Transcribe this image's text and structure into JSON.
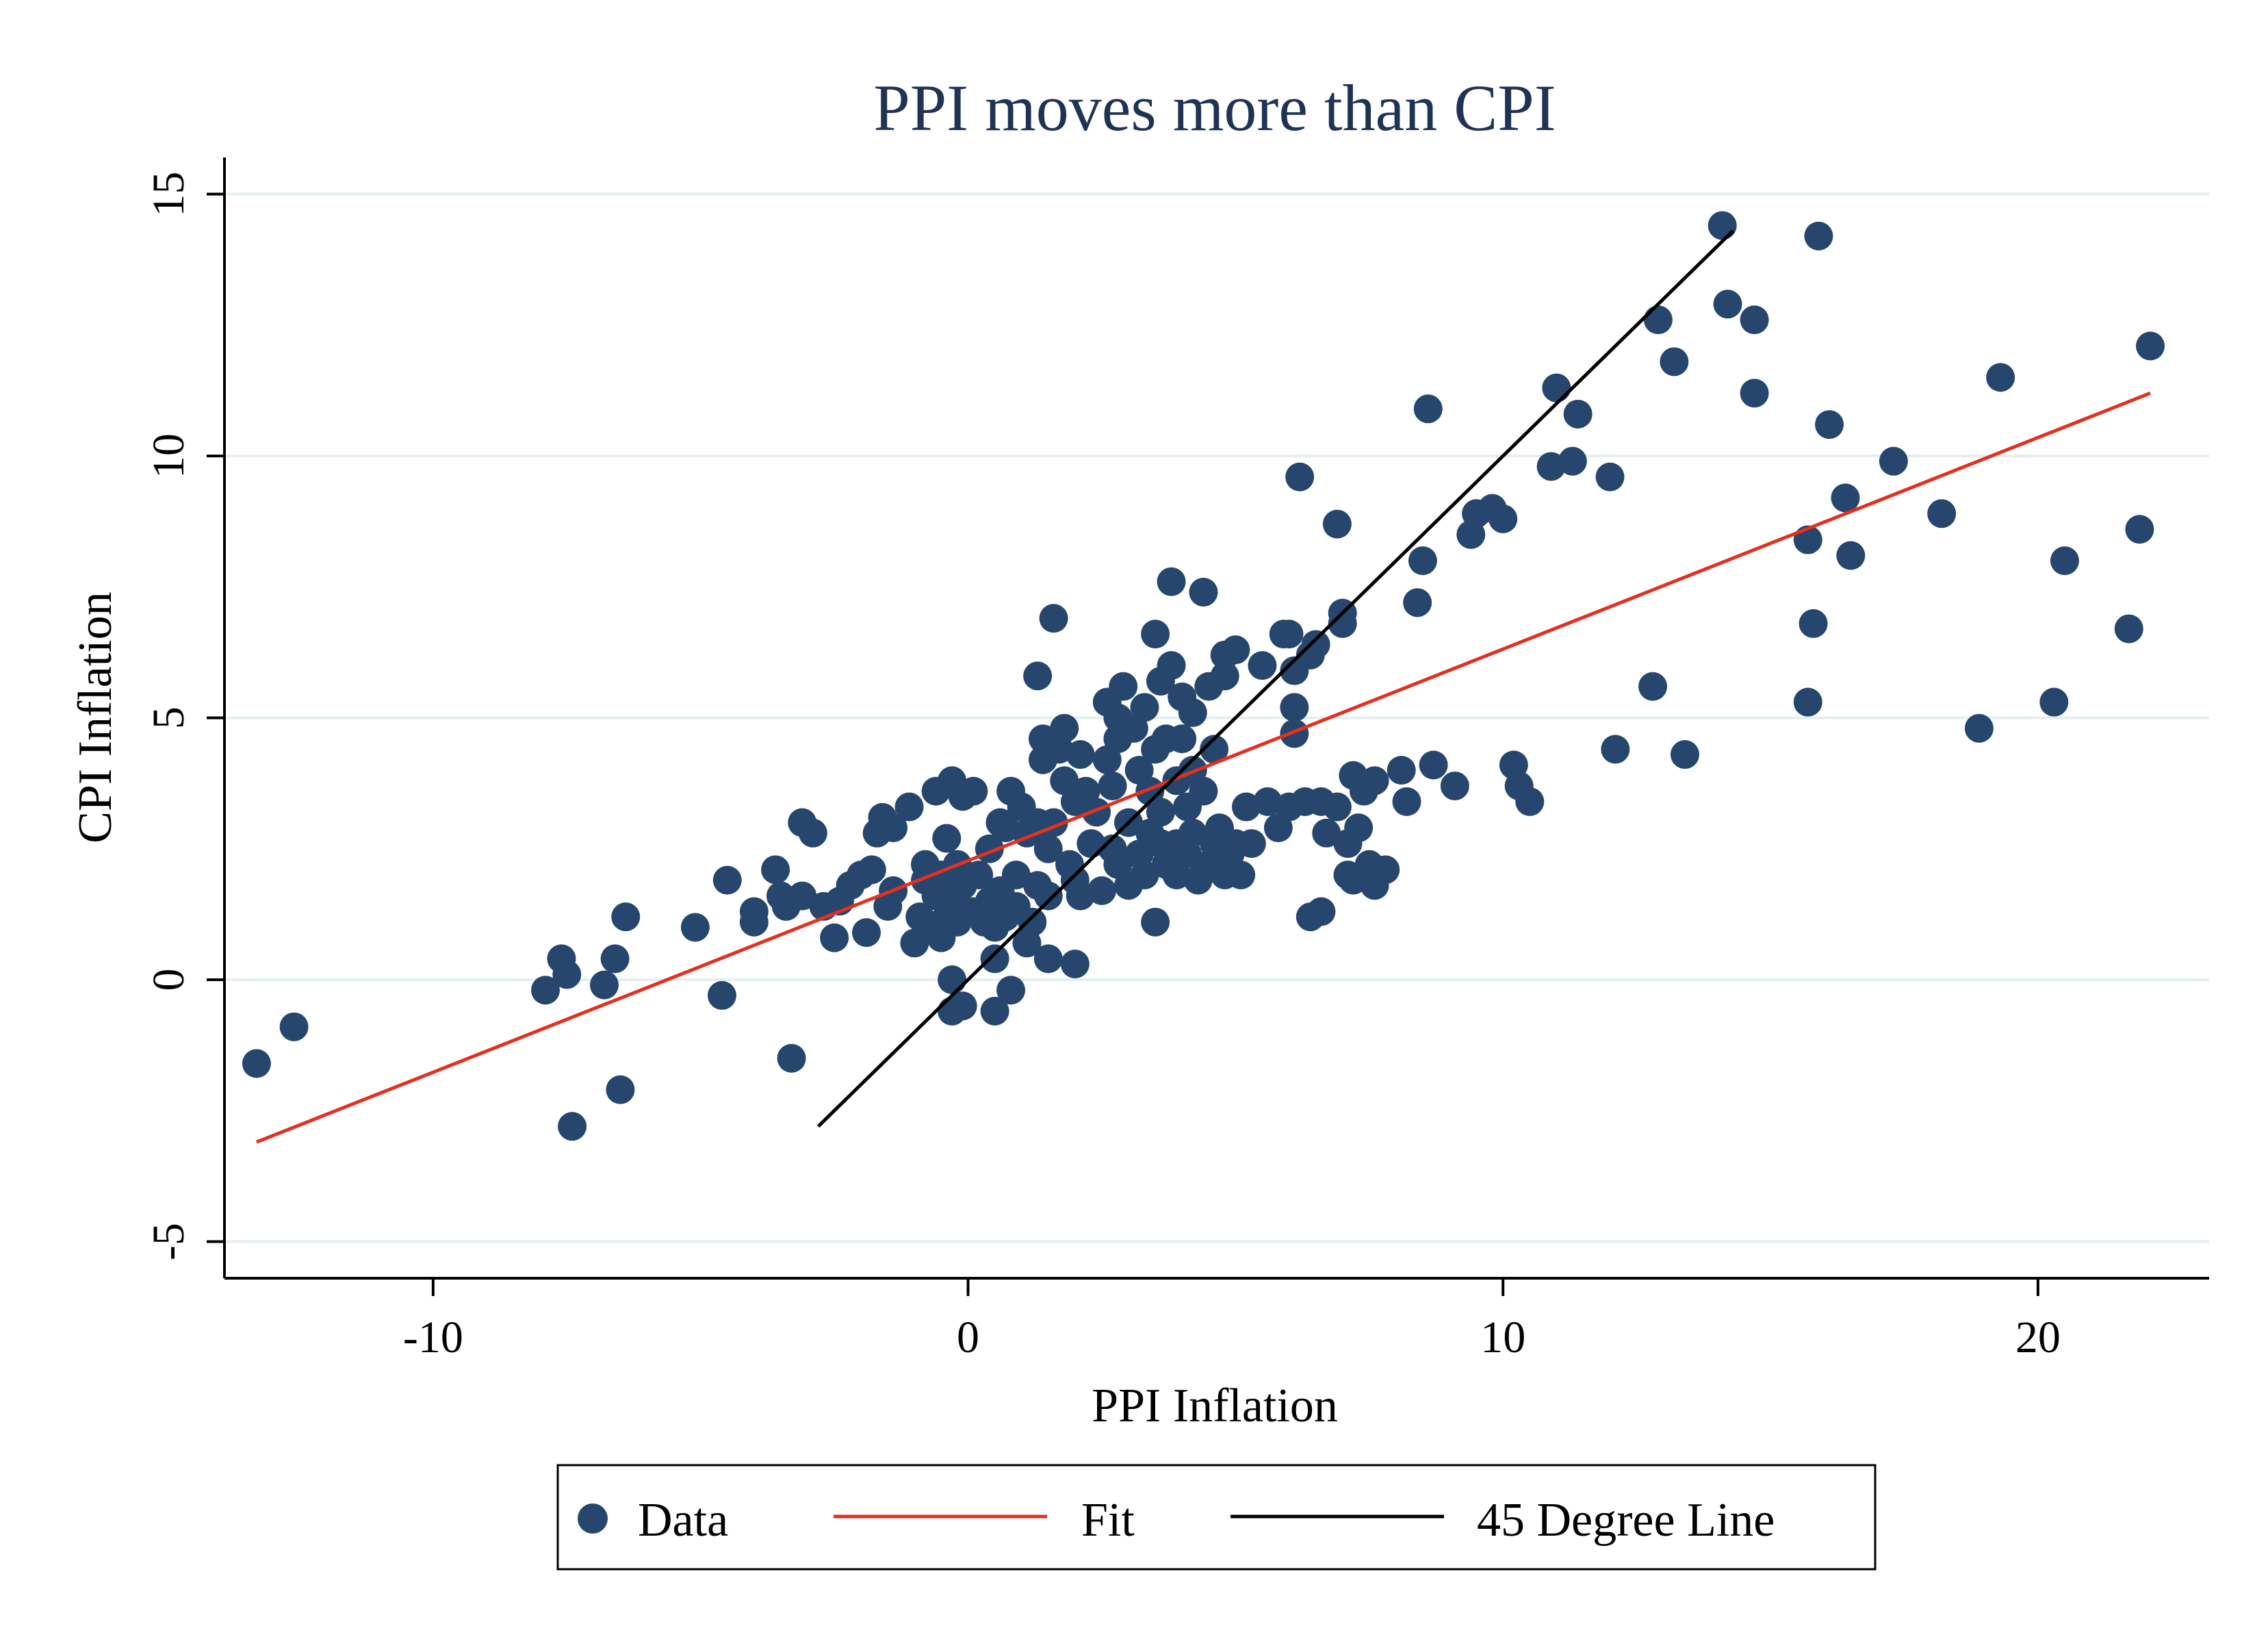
{
  "chart_data": {
    "type": "scatter",
    "title": "PPI moves more than CPI",
    "xlabel": "PPI Inflation",
    "ylabel": "CPI Inflation",
    "xlim": [
      -13.9,
      23.2
    ],
    "ylim": [
      -5.7,
      15.7
    ],
    "xticks": [
      -10,
      0,
      10,
      20
    ],
    "yticks": [
      -5,
      0,
      5,
      10,
      15
    ],
    "grid": "horizontal",
    "legend_position": "bottom",
    "colors": {
      "data": "#26466d",
      "fit": "#e3301f",
      "diag": "#000000",
      "title": "#1f3355",
      "grid": "#e6eeee"
    },
    "series": [
      {
        "name": "Data",
        "kind": "points",
        "points": [
          [
            -13.3,
            -1.6
          ],
          [
            -12.6,
            -0.9
          ],
          [
            -7.9,
            -0.2
          ],
          [
            -7.6,
            0.4
          ],
          [
            -7.5,
            0.1
          ],
          [
            -7.4,
            -2.8
          ],
          [
            -6.8,
            -0.1
          ],
          [
            -6.6,
            0.4
          ],
          [
            -6.5,
            -2.1
          ],
          [
            -6.4,
            1.2
          ],
          [
            -5.1,
            1.0
          ],
          [
            -4.6,
            -0.3
          ],
          [
            -4.5,
            1.9
          ],
          [
            -4.0,
            1.1
          ],
          [
            -4.0,
            1.3
          ],
          [
            -3.6,
            2.1
          ],
          [
            -3.5,
            1.6
          ],
          [
            -3.4,
            1.4
          ],
          [
            -3.3,
            -1.5
          ],
          [
            -3.1,
            1.6
          ],
          [
            -3.1,
            3.0
          ],
          [
            -2.9,
            2.8
          ],
          [
            -2.7,
            1.4
          ],
          [
            -2.5,
            0.8
          ],
          [
            -2.4,
            1.5
          ],
          [
            -2.2,
            1.8
          ],
          [
            -2.0,
            2.0
          ],
          [
            -1.9,
            0.9
          ],
          [
            -1.8,
            2.1
          ],
          [
            -1.7,
            2.8
          ],
          [
            -1.6,
            3.1
          ],
          [
            -1.5,
            1.4
          ],
          [
            -1.4,
            1.7
          ],
          [
            -1.4,
            2.9
          ],
          [
            -1.1,
            3.3
          ],
          [
            -1.0,
            0.7
          ],
          [
            -0.9,
            1.2
          ],
          [
            -0.8,
            1.9
          ],
          [
            -0.8,
            2.2
          ],
          [
            -0.7,
            1.0
          ],
          [
            -0.6,
            3.6
          ],
          [
            -0.6,
            1.6
          ],
          [
            -0.5,
            2.0
          ],
          [
            -0.5,
            0.8
          ],
          [
            -0.4,
            2.7
          ],
          [
            -0.4,
            1.2
          ],
          [
            -0.3,
            3.8
          ],
          [
            -0.3,
            1.5
          ],
          [
            -0.3,
            0.0
          ],
          [
            -0.3,
            -0.6
          ],
          [
            -0.2,
            2.2
          ],
          [
            -0.2,
            1.1
          ],
          [
            -0.1,
            3.5
          ],
          [
            -0.1,
            1.8
          ],
          [
            -0.1,
            -0.5
          ],
          [
            0.1,
            3.6
          ],
          [
            0.1,
            1.3
          ],
          [
            0.2,
            2.0
          ],
          [
            0.3,
            1.1
          ],
          [
            0.4,
            2.5
          ],
          [
            0.4,
            1.5
          ],
          [
            0.5,
            -0.6
          ],
          [
            0.5,
            1.0
          ],
          [
            0.5,
            0.4
          ],
          [
            0.6,
            3.0
          ],
          [
            0.6,
            1.7
          ],
          [
            0.7,
            1.2
          ],
          [
            0.7,
            2.9
          ],
          [
            0.8,
            3.6
          ],
          [
            0.8,
            -0.2
          ],
          [
            0.9,
            2.0
          ],
          [
            0.9,
            1.4
          ],
          [
            1.0,
            3.3
          ],
          [
            1.1,
            2.8
          ],
          [
            1.1,
            0.7
          ],
          [
            1.2,
            1.1
          ],
          [
            1.3,
            3.0
          ],
          [
            1.3,
            1.8
          ],
          [
            1.3,
            5.8
          ],
          [
            1.4,
            4.2
          ],
          [
            1.4,
            4.6
          ],
          [
            1.5,
            2.5
          ],
          [
            1.5,
            1.6
          ],
          [
            1.5,
            0.4
          ],
          [
            1.6,
            6.9
          ],
          [
            1.6,
            3.0
          ],
          [
            1.7,
            4.4
          ],
          [
            1.8,
            4.8
          ],
          [
            1.8,
            3.8
          ],
          [
            1.9,
            2.2
          ],
          [
            2.0,
            3.4
          ],
          [
            2.0,
            1.9
          ],
          [
            2.0,
            0.3
          ],
          [
            2.1,
            4.3
          ],
          [
            2.1,
            1.6
          ],
          [
            2.2,
            3.6
          ],
          [
            2.3,
            2.6
          ],
          [
            2.4,
            3.2
          ],
          [
            2.5,
            1.7
          ],
          [
            2.6,
            4.2
          ],
          [
            2.6,
            5.3
          ],
          [
            2.7,
            3.7
          ],
          [
            2.7,
            2.5
          ],
          [
            2.8,
            5.0
          ],
          [
            2.8,
            4.6
          ],
          [
            2.8,
            2.2
          ],
          [
            2.9,
            5.6
          ],
          [
            3.0,
            3.0
          ],
          [
            3.0,
            1.8
          ],
          [
            3.1,
            4.8
          ],
          [
            3.2,
            2.4
          ],
          [
            3.2,
            4.0
          ],
          [
            3.3,
            5.2
          ],
          [
            3.3,
            2.0
          ],
          [
            3.4,
            3.6
          ],
          [
            3.4,
            2.8
          ],
          [
            3.5,
            4.4
          ],
          [
            3.5,
            6.6
          ],
          [
            3.5,
            1.1
          ],
          [
            3.6,
            5.7
          ],
          [
            3.6,
            3.2
          ],
          [
            3.6,
            2.6
          ],
          [
            3.7,
            4.6
          ],
          [
            3.7,
            2.2
          ],
          [
            3.8,
            7.6
          ],
          [
            3.8,
            6.0
          ],
          [
            3.9,
            3.8
          ],
          [
            3.9,
            2.6
          ],
          [
            3.9,
            2.0
          ],
          [
            4.0,
            5.4
          ],
          [
            4.0,
            4.6
          ],
          [
            4.1,
            3.3
          ],
          [
            4.1,
            2.4
          ],
          [
            4.2,
            5.1
          ],
          [
            4.2,
            4.0
          ],
          [
            4.2,
            2.8
          ],
          [
            4.3,
            1.9
          ],
          [
            4.4,
            7.4
          ],
          [
            4.4,
            3.6
          ],
          [
            4.5,
            5.6
          ],
          [
            4.5,
            2.2
          ],
          [
            4.6,
            4.4
          ],
          [
            4.6,
            2.6
          ],
          [
            4.7,
            2.9
          ],
          [
            4.8,
            5.8
          ],
          [
            4.8,
            6.2
          ],
          [
            4.8,
            2.0
          ],
          [
            4.9,
            2.4
          ],
          [
            5.0,
            6.3
          ],
          [
            5.0,
            2.6
          ],
          [
            5.1,
            2.0
          ],
          [
            5.2,
            3.3
          ],
          [
            5.3,
            2.6
          ],
          [
            5.5,
            6.0
          ],
          [
            5.6,
            3.4
          ],
          [
            5.8,
            2.9
          ],
          [
            5.9,
            6.6
          ],
          [
            6.0,
            6.6
          ],
          [
            6.0,
            3.3
          ],
          [
            6.1,
            5.2
          ],
          [
            6.1,
            4.7
          ],
          [
            6.1,
            5.9
          ],
          [
            6.2,
            9.6
          ],
          [
            6.3,
            3.4
          ],
          [
            6.4,
            6.2
          ],
          [
            6.4,
            1.2
          ],
          [
            6.5,
            6.4
          ],
          [
            6.6,
            1.3
          ],
          [
            6.6,
            3.4
          ],
          [
            6.7,
            2.8
          ],
          [
            6.9,
            3.3
          ],
          [
            6.9,
            8.7
          ],
          [
            7.0,
            6.8
          ],
          [
            7.0,
            7.0
          ],
          [
            7.1,
            2.6
          ],
          [
            7.1,
            2.0
          ],
          [
            7.2,
            3.9
          ],
          [
            7.2,
            1.9
          ],
          [
            7.3,
            2.9
          ],
          [
            7.4,
            3.6
          ],
          [
            7.5,
            2.2
          ],
          [
            7.6,
            3.8
          ],
          [
            7.6,
            1.8
          ],
          [
            7.8,
            2.1
          ],
          [
            8.1,
            4.0
          ],
          [
            8.2,
            3.4
          ],
          [
            8.4,
            7.2
          ],
          [
            8.5,
            8.0
          ],
          [
            8.6,
            10.9
          ],
          [
            8.7,
            4.1
          ],
          [
            9.1,
            3.7
          ],
          [
            9.4,
            8.5
          ],
          [
            9.5,
            8.9
          ],
          [
            9.8,
            9.0
          ],
          [
            10.0,
            8.8
          ],
          [
            10.2,
            4.1
          ],
          [
            10.3,
            3.7
          ],
          [
            10.5,
            3.4
          ],
          [
            10.9,
            9.8
          ],
          [
            11.0,
            11.3
          ],
          [
            11.3,
            9.9
          ],
          [
            11.4,
            10.8
          ],
          [
            12.0,
            9.6
          ],
          [
            12.1,
            4.4
          ],
          [
            12.8,
            5.6
          ],
          [
            12.9,
            12.6
          ],
          [
            13.2,
            11.8
          ],
          [
            13.4,
            4.3
          ],
          [
            14.1,
            14.4
          ],
          [
            14.2,
            12.9
          ],
          [
            14.7,
            11.2
          ],
          [
            14.7,
            12.6
          ],
          [
            15.7,
            8.4
          ],
          [
            15.7,
            5.3
          ],
          [
            15.8,
            6.8
          ],
          [
            15.9,
            14.2
          ],
          [
            16.1,
            10.6
          ],
          [
            16.4,
            9.2
          ],
          [
            16.5,
            8.1
          ],
          [
            17.3,
            9.9
          ],
          [
            18.2,
            8.9
          ],
          [
            18.9,
            4.8
          ],
          [
            19.3,
            11.5
          ],
          [
            20.3,
            5.3
          ],
          [
            20.5,
            8.0
          ],
          [
            21.7,
            6.7
          ],
          [
            21.9,
            8.6
          ],
          [
            22.1,
            12.1
          ]
        ]
      },
      {
        "name": "Fit",
        "kind": "line",
        "x": [
          -13.3,
          22.1
        ],
        "y": [
          -3.1,
          11.2
        ]
      },
      {
        "name": "45 Degree Line",
        "kind": "line",
        "x": [
          -2.8,
          14.3
        ],
        "y": [
          -2.8,
          14.3
        ]
      }
    ]
  }
}
